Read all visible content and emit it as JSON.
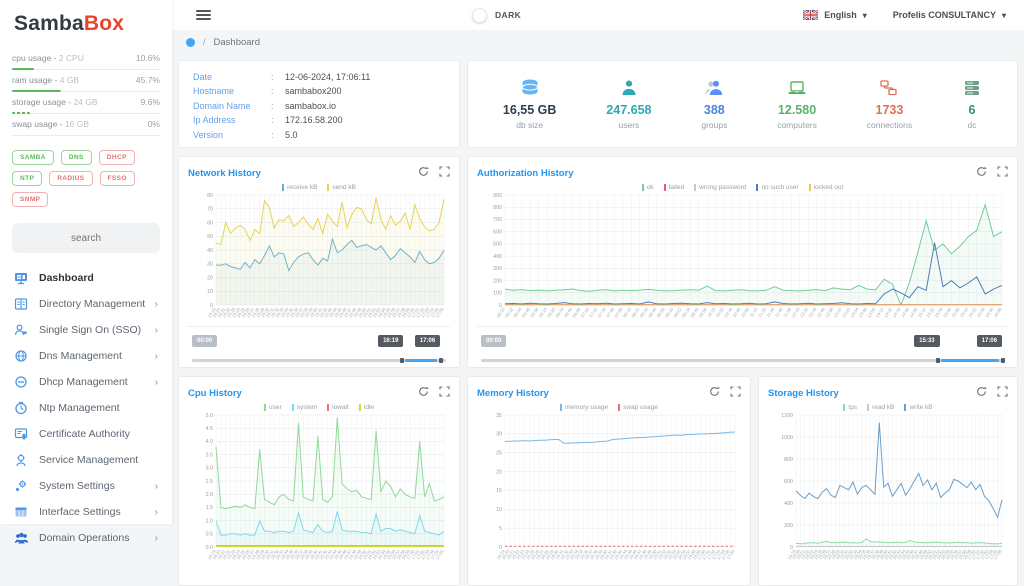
{
  "brand": {
    "name_primary": "Samba",
    "name_accent": "Box"
  },
  "topbar": {
    "dark_label": "DARK",
    "language": "English",
    "account": "Profelis CONSULTANCY"
  },
  "breadcrumb": {
    "separator": "/",
    "current": "Dashboard"
  },
  "sidebar": {
    "search_placeholder": "search",
    "usage": [
      {
        "label": "cpu usage -",
        "value": "2 CPU",
        "percent": "10.6%",
        "bar": 15,
        "dashed": false
      },
      {
        "label": "ram usage -",
        "value": "4 GB",
        "percent": "45.7%",
        "bar": 33,
        "dashed": false
      },
      {
        "label": "storage usage -",
        "value": "24 GB",
        "percent": "9.6%",
        "bar": 12,
        "dashed": true
      },
      {
        "label": "swap usage -",
        "value": "16 GB",
        "percent": "0%",
        "bar": 0,
        "dashed": false
      }
    ],
    "services": [
      {
        "label": "SAMBA",
        "status": "up"
      },
      {
        "label": "DNS",
        "status": "up"
      },
      {
        "label": "DHCP",
        "status": "down"
      },
      {
        "label": "NTP",
        "status": "up"
      },
      {
        "label": "RADIUS",
        "status": "down"
      },
      {
        "label": "FSSO",
        "status": "down"
      },
      {
        "label": "SNMP",
        "status": "down"
      }
    ],
    "nav": [
      {
        "label": "Dashboard",
        "icon": "dashboard-icon",
        "active": true,
        "chevron": false
      },
      {
        "label": "Directory Management",
        "icon": "directory-icon",
        "active": false,
        "chevron": true
      },
      {
        "label": "Single Sign On (SSO)",
        "icon": "sso-icon",
        "active": false,
        "chevron": true
      },
      {
        "label": "Dns Management",
        "icon": "dns-icon",
        "active": false,
        "chevron": true
      },
      {
        "label": "Dhcp Management",
        "icon": "dhcp-icon",
        "active": false,
        "chevron": true
      },
      {
        "label": "Ntp Management",
        "icon": "ntp-icon",
        "active": false,
        "chevron": false
      },
      {
        "label": "Certificate Authority",
        "icon": "certificate-icon",
        "active": false,
        "chevron": false
      },
      {
        "label": "Service Management",
        "icon": "service-icon",
        "active": false,
        "chevron": false
      },
      {
        "label": "System Settings",
        "icon": "system-settings-icon",
        "active": false,
        "chevron": true
      },
      {
        "label": "Interface Settings",
        "icon": "interface-icon",
        "active": false,
        "chevron": true
      },
      {
        "label": "Domain Operations",
        "icon": "domain-operations-icon",
        "active": false,
        "chevron": true
      }
    ]
  },
  "info_card": {
    "rows": [
      {
        "label": "Date",
        "value": "12-06-2024, 17:06:11"
      },
      {
        "label": "Hostname",
        "value": "sambabox200"
      },
      {
        "label": "Domain Name",
        "value": "sambabox.io"
      },
      {
        "label": "Ip Address",
        "value": "172.16.58.200"
      },
      {
        "label": "Version",
        "value": "5.0"
      }
    ]
  },
  "stats": [
    {
      "icon": "database-icon",
      "icon_color": "#64b5f6",
      "value": "16,55 GB",
      "value_color": "#2c3e50",
      "label": "db size"
    },
    {
      "icon": "user-icon",
      "icon_color": "#2fa7b8",
      "value": "247.658",
      "value_color": "#2fa7b8",
      "label": "users"
    },
    {
      "icon": "group-icon",
      "icon_color": "#5b8ff9",
      "value": "388",
      "value_color": "#4a86d8",
      "label": "groups"
    },
    {
      "icon": "laptop-icon",
      "icon_color": "#58b368",
      "value": "12.580",
      "value_color": "#58b368",
      "label": "computers"
    },
    {
      "icon": "connections-icon",
      "icon_color": "#e0714f",
      "value": "1733",
      "value_color": "#e0714f",
      "label": "connections"
    },
    {
      "icon": "dc-icon",
      "icon_color": "#6d9e87",
      "value": "6",
      "value_color": "#3f8f5f",
      "label": "dc"
    }
  ],
  "shared": {
    "minute_x": [
      "16:19",
      "16:20",
      "16:21",
      "16:22",
      "16:23",
      "16:24",
      "16:25",
      "16:26",
      "16:27",
      "16:28",
      "16:29",
      "16:30",
      "16:31",
      "16:32",
      "16:33",
      "16:34",
      "16:35",
      "16:36",
      "16:37",
      "16:38",
      "16:39",
      "16:40",
      "16:41",
      "16:42",
      "16:43",
      "16:44",
      "16:45",
      "16:46",
      "16:47",
      "16:48",
      "16:49",
      "16:50",
      "16:51",
      "16:52",
      "16:53",
      "16:54",
      "16:55",
      "16:56",
      "16:57",
      "16:58",
      "16:59",
      "17:00",
      "17:01",
      "17:02",
      "17:03",
      "17:04",
      "17:05",
      "17:06"
    ]
  },
  "chart_data": [
    {
      "id": "network",
      "type": "line",
      "title": "Network History",
      "x_ref": "shared.minute_x",
      "ylim": [
        0,
        80
      ],
      "ytick": 10,
      "grid": true,
      "legend_position": "top",
      "series": [
        {
          "name": "receive kB",
          "color": "#6baed6",
          "fill": true,
          "values": [
            29,
            29,
            30,
            28,
            27,
            26,
            31,
            27,
            33,
            30,
            36,
            43,
            35,
            38,
            37,
            25,
            31,
            35,
            37,
            38,
            33,
            29,
            34,
            32,
            48,
            38,
            40,
            44,
            47,
            42,
            43,
            44,
            42,
            40,
            43,
            38,
            33,
            36,
            41,
            38,
            35,
            31,
            39,
            33,
            30,
            31,
            34,
            40
          ]
        },
        {
          "name": "send kB",
          "color": "#e4d354",
          "fill": true,
          "values": [
            45,
            44,
            60,
            52,
            56,
            58,
            55,
            47,
            55,
            52,
            76,
            71,
            56,
            62,
            61,
            65,
            57,
            60,
            64,
            59,
            55,
            63,
            52,
            66,
            61,
            57,
            75,
            56,
            66,
            71,
            70,
            62,
            59,
            78,
            62,
            55,
            65,
            58,
            61,
            67,
            55,
            73,
            63,
            57,
            54,
            55,
            60,
            77
          ]
        }
      ],
      "slider": {
        "min_label": "00:00",
        "window": [
          "16:19",
          "17:06"
        ],
        "segment": [
          84,
          96.5
        ]
      }
    },
    {
      "id": "auth",
      "type": "line",
      "title": "Authorization History",
      "x": [
        "05:10",
        "05:22",
        "05:34",
        "05:46",
        "05:58",
        "06:10",
        "06:22",
        "06:34",
        "06:46",
        "06:58",
        "07:10",
        "07:22",
        "07:34",
        "07:46",
        "07:58",
        "08:10",
        "08:22",
        "08:34",
        "08:46",
        "08:58",
        "09:10",
        "09:22",
        "09:34",
        "09:46",
        "09:58",
        "10:10",
        "10:22",
        "10:34",
        "10:46",
        "10:58",
        "11:10",
        "11:22",
        "11:34",
        "11:46",
        "11:58",
        "12:10",
        "12:22",
        "12:34",
        "12:46",
        "12:58",
        "13:10",
        "13:22",
        "13:34",
        "13:46",
        "13:58",
        "14:10",
        "14:22",
        "14:34",
        "14:46",
        "14:58",
        "15:10",
        "15:22",
        "15:34",
        "15:46",
        "15:58",
        "16:10",
        "16:22",
        "16:34",
        "16:46",
        "16:58"
      ],
      "ylim": [
        0,
        900
      ],
      "ytick": 100,
      "grid": true,
      "legend_position": "top",
      "series": [
        {
          "name": "ok",
          "color": "#6fcf97",
          "fill": true,
          "values": [
            130,
            120,
            126,
            118,
            122,
            115,
            120,
            125,
            131,
            118,
            112,
            121,
            126,
            115,
            120,
            118,
            122,
            128,
            120,
            115,
            118,
            122,
            125,
            120,
            155,
            118,
            115,
            121,
            124,
            118,
            115,
            120,
            150,
            121,
            118,
            115,
            120,
            126,
            118,
            140,
            130,
            125,
            160,
            130,
            125,
            210,
            170,
            0,
            180,
            430,
            690,
            450,
            500,
            420,
            480,
            560,
            610,
            820,
            560,
            600
          ]
        },
        {
          "name": "failed",
          "color": "#e15f6e",
          "flat": 3
        },
        {
          "name": "wrong password",
          "color": "#c4c9cd",
          "flat": 0
        },
        {
          "name": "no such user",
          "color": "#4f7cb8",
          "values": [
            10,
            12,
            8,
            15,
            10,
            8,
            12,
            20,
            10,
            8,
            12,
            10,
            15,
            8,
            10,
            12,
            8,
            25,
            10,
            8,
            12,
            15,
            10,
            8,
            20,
            10,
            12,
            8,
            10,
            15,
            8,
            10,
            25,
            12,
            8,
            10,
            15,
            8,
            10,
            12,
            18,
            10,
            8,
            12,
            10,
            90,
            130,
            100,
            60,
            150,
            120,
            510,
            150,
            200,
            140,
            180,
            230,
            90,
            130,
            160
          ]
        },
        {
          "name": "locked out",
          "color": "#e6c84d",
          "flat": 0
        }
      ],
      "slider": {
        "min_label": "00:00",
        "window": [
          "15:33",
          "17:06"
        ],
        "segment": [
          88,
          99
        ]
      }
    },
    {
      "id": "cpu",
      "type": "line",
      "title": "Cpu History",
      "x_ref": "shared.minute_x",
      "ylim": [
        0,
        5
      ],
      "ytick": 0.5,
      "grid": true,
      "legend_position": "top",
      "series": [
        {
          "name": "user",
          "color": "#90d998",
          "fill": true,
          "values": [
            3.8,
            1.5,
            1.45,
            1.5,
            1.55,
            1.5,
            1.6,
            1.5,
            1.45,
            3.7,
            1.8,
            1.7,
            1.6,
            1.9,
            2.0,
            1.8,
            1.75,
            4.7,
            1.9,
            1.8,
            1.75,
            4.2,
            1.8,
            1.7,
            1.9,
            4.9,
            2.4,
            2.2,
            2.1,
            2.15,
            1.9,
            1.85,
            1.8,
            4.4,
            2.1,
            2.5,
            2.3,
            1.9,
            2.2,
            2.0,
            1.9,
            1.85,
            4.0,
            1.9,
            2.4,
            1.75,
            1.8,
            1.9
          ]
        },
        {
          "name": "system",
          "color": "#7dd8f0",
          "fill": true,
          "values": [
            1.0,
            0.45,
            0.45,
            0.5,
            0.5,
            0.45,
            0.5,
            0.45,
            0.45,
            1.0,
            0.6,
            0.6,
            0.55,
            0.6,
            0.6,
            0.55,
            0.6,
            1.3,
            0.65,
            0.6,
            0.55,
            0.85,
            0.6,
            0.55,
            0.6,
            1.35,
            0.65,
            0.6,
            0.6,
            0.6,
            0.55,
            0.55,
            0.5,
            1.25,
            0.6,
            0.7,
            0.7,
            0.6,
            0.65,
            0.6,
            0.55,
            0.5,
            1.2,
            0.6,
            0.55,
            0.5,
            0.45,
            0.6
          ]
        },
        {
          "name": "iowait",
          "color": "#e57373",
          "flat": 0.04
        },
        {
          "name": "idle",
          "color": "#cddc39",
          "flat": 0.02
        }
      ]
    },
    {
      "id": "memory",
      "type": "line",
      "title": "Memory History",
      "x_ref": "shared.minute_x",
      "ylim": [
        0,
        35
      ],
      "ytick": 5,
      "grid": true,
      "legend_position": "top",
      "series": [
        {
          "name": "memory usage",
          "color": "#7ab8e8",
          "values": [
            28,
            28,
            28.1,
            28.1,
            28.2,
            28.1,
            28.2,
            28.3,
            28.3,
            28.4,
            28.5,
            28.5,
            27.5,
            27.5,
            27.6,
            27.6,
            27.7,
            27.7,
            27.8,
            27.9,
            28,
            28.1,
            28.5,
            28.6,
            28.7,
            28.8,
            28.9,
            29,
            29,
            29.1,
            29.2,
            29.3,
            29.4,
            29.5,
            29.6,
            29.7,
            29.6,
            29.8,
            29.8,
            29.9,
            30,
            30,
            30.1,
            30.1,
            30.2,
            30.3,
            30.4,
            30.5
          ]
        },
        {
          "name": "swap usage",
          "color": "#e57373",
          "flat": 0.2,
          "dash": true
        }
      ]
    },
    {
      "id": "storage",
      "type": "line",
      "title": "Storage History",
      "x_ref": "shared.minute_x",
      "ylim": [
        0,
        1200
      ],
      "ytick": 200,
      "grid": true,
      "legend_position": "top",
      "series": [
        {
          "name": "tps",
          "color": "#90d9a8",
          "fill": true,
          "values": [
            35,
            30,
            32,
            40,
            38,
            35,
            45,
            50,
            40,
            38,
            42,
            45,
            40,
            38,
            36,
            42,
            75,
            50,
            45,
            48,
            42,
            40,
            38,
            45,
            40,
            42,
            60,
            45,
            42,
            40,
            38,
            42,
            45,
            40,
            38,
            36,
            40,
            42,
            38,
            40,
            35,
            38,
            40,
            36,
            32,
            30,
            28,
            35
          ]
        },
        {
          "name": "read kB",
          "color": "#c4c9cd",
          "flat": 5
        },
        {
          "name": "write kB",
          "color": "#6b9ecb",
          "values": [
            510,
            470,
            440,
            490,
            460,
            440,
            500,
            530,
            470,
            450,
            560,
            540,
            520,
            590,
            480,
            540,
            560,
            520,
            480,
            1130,
            545,
            580,
            460,
            520,
            580,
            470,
            530,
            600,
            670,
            560,
            610,
            520,
            580,
            450,
            490,
            520,
            615,
            600,
            570,
            540,
            590,
            520,
            570,
            460,
            420,
            350,
            270,
            430
          ]
        }
      ]
    }
  ]
}
